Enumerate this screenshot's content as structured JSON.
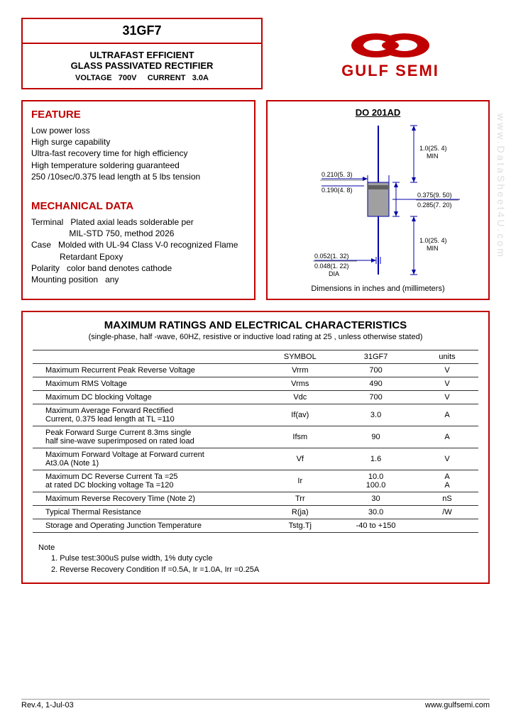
{
  "header": {
    "part_number": "31GF7",
    "desc_line1": "ULTRAFAST EFFICIENT",
    "desc_line2": "GLASS PASSIVATED RECTIFIER",
    "voltage_label": "VOLTAGE",
    "voltage_value": "700V",
    "current_label": "CURRENT",
    "current_value": "3.0A"
  },
  "logo": {
    "text": "GULF SEMI",
    "color": "#c00000"
  },
  "feature": {
    "title": "FEATURE",
    "lines": [
      "Low power loss",
      "High surge capability",
      "Ultra-fast recovery time for high efficiency",
      "High temperature soldering guaranteed",
      "250   /10sec/0.375   lead length at 5 lbs tension"
    ]
  },
  "mechanical": {
    "title": "MECHANICAL DATA",
    "lines": [
      "Terminal   Plated axial leads solderable per",
      "                MIL-STD 750, method 2026",
      "Case   Molded with UL-94 Class V-0 recognized Flame",
      "            Retardant Epoxy",
      "Polarity   color band denotes cathode",
      "Mounting position   any"
    ]
  },
  "package": {
    "title": "DO  201AD",
    "caption": "Dimensions in inches and (millimeters)",
    "dims": {
      "lead_len_top": "1.0(25. 4)\nMIN",
      "body_w_top": "0.210(5. 3)",
      "body_w_bot": "0.190(4. 8)",
      "body_h_top": "0.375(9. 50)",
      "body_h_bot": "0.285(7. 20)",
      "lead_len_bot": "1.0(25. 4)\nMIN",
      "lead_dia_top": "0.052(1. 32)",
      "lead_dia_bot": "0.048(1. 22)",
      "dia_label": "DIA"
    },
    "colors": {
      "line": "#0000aa",
      "body_fill": "#a0a0a0"
    }
  },
  "ratings": {
    "title": "MAXIMUM  RATINGS  AND  ELECTRICAL  CHARACTERISTICS",
    "subtitle": "(single-phase, half -wave, 60HZ, resistive or inductive load rating at 25   , unless otherwise stated)",
    "columns": [
      "",
      "SYMBOL",
      "31GF7",
      "units"
    ],
    "rows": [
      {
        "param": "Maximum Recurrent Peak Reverse Voltage",
        "symbol": "Vrrm",
        "value": "700",
        "unit": "V"
      },
      {
        "param": "Maximum RMS Voltage",
        "symbol": "Vrms",
        "value": "490",
        "unit": "V"
      },
      {
        "param": "Maximum DC blocking Voltage",
        "symbol": "Vdc",
        "value": "700",
        "unit": "V"
      },
      {
        "param": "Maximum Average Forward Rectified\nCurrent, 0.375   lead length at TL =110",
        "symbol": "If(av)",
        "value": "3.0",
        "unit": "A"
      },
      {
        "param": "Peak Forward Surge Current 8.3ms single\nhalf sine-wave superimposed on rated load",
        "symbol": "Ifsm",
        "value": "90",
        "unit": "A"
      },
      {
        "param": "Maximum Forward Voltage at Forward current\nAt3.0A                                    (Note 1)",
        "symbol": "Vf",
        "value": "1.6",
        "unit": "V"
      },
      {
        "param": "Maximum DC Reverse Current    Ta =25\nat rated DC blocking voltage      Ta =120",
        "symbol": "Ir",
        "value": "10.0\n100.0",
        "unit": "A\nA"
      },
      {
        "param": "Maximum Reverse Recovery Time    (Note 2)",
        "symbol": "Trr",
        "value": "30",
        "unit": "nS"
      },
      {
        "param": "Typical Thermal Resistance",
        "symbol": "R(ja)",
        "value": "30.0",
        "unit": "/W"
      },
      {
        "param": "Storage and Operating Junction Temperature",
        "symbol": "Tstg.Tj",
        "value": "-40 to +150",
        "unit": ""
      }
    ]
  },
  "notes": {
    "title": "Note",
    "lines": [
      "1. Pulse test:300uS pulse width, 1% duty cycle",
      "2. Reverse Recovery Condition If =0.5A, Ir =1.0A, Irr =0.25A"
    ]
  },
  "footer": {
    "left": "Rev.4, 1-Jul-03",
    "right": "www.gulfsemi.com"
  },
  "watermark": "www.DataSheet4U.com"
}
